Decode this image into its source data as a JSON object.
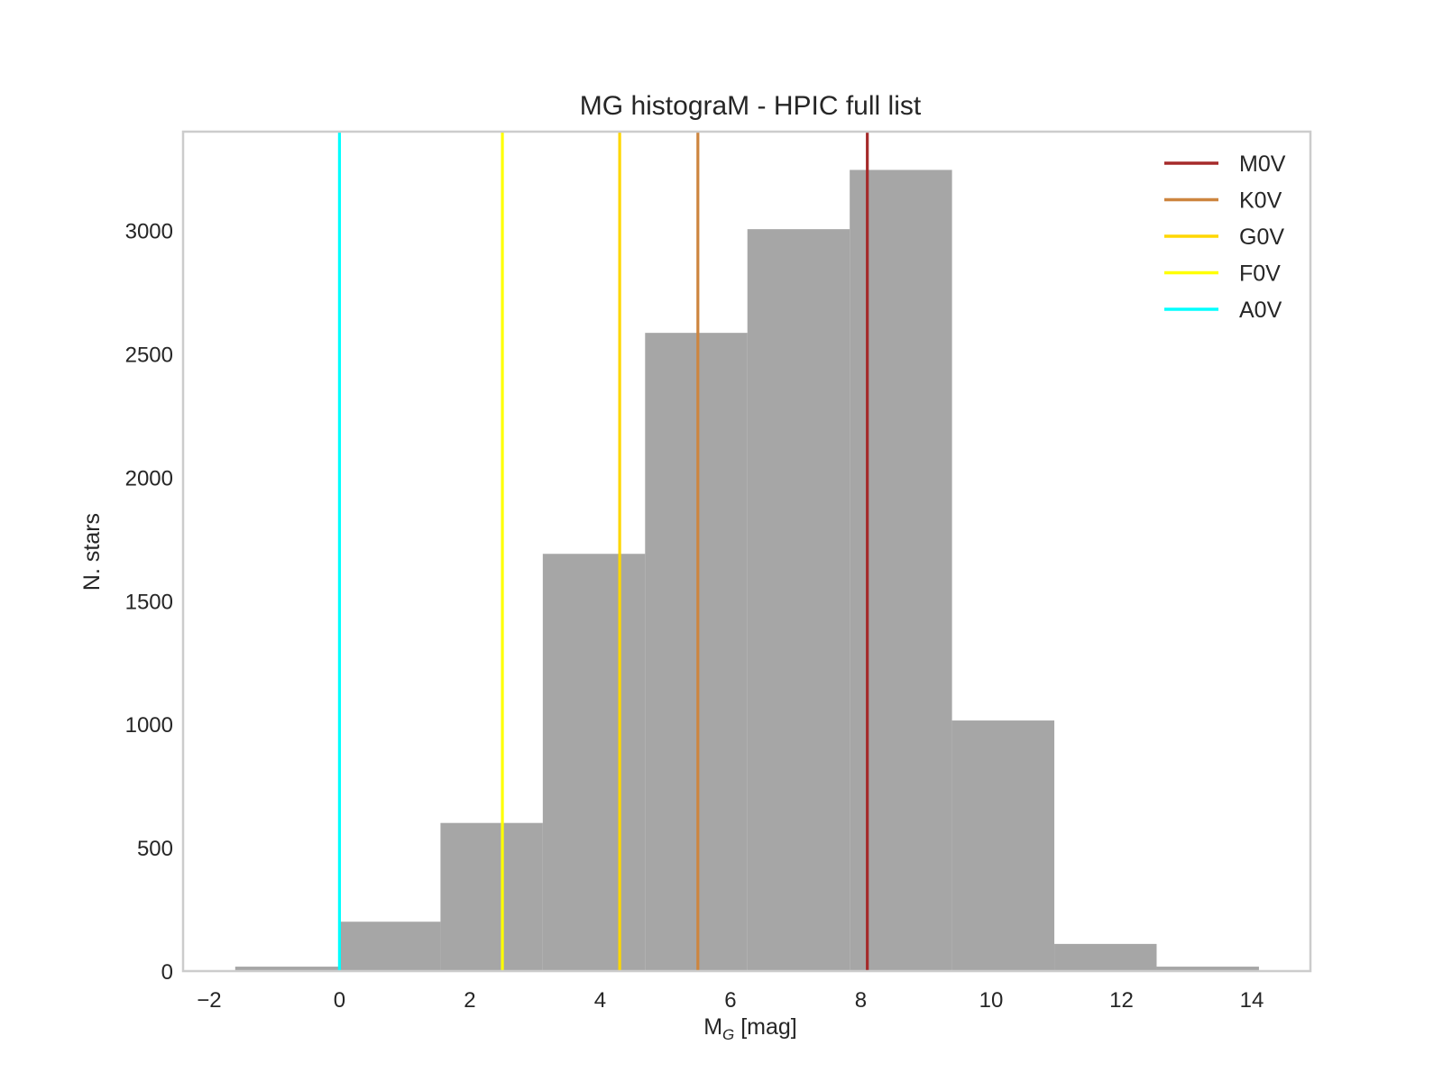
{
  "chart_data": {
    "type": "bar",
    "title": "MG histograM - HPIC full list",
    "xlabel": {
      "main": "M",
      "sub": "G",
      "unit": " [mag]"
    },
    "ylabel": "N. stars",
    "xlim": [
      -2.4,
      14.9
    ],
    "ylim": [
      0,
      3400
    ],
    "xticks": [
      -2,
      0,
      2,
      4,
      6,
      8,
      10,
      12,
      14
    ],
    "xtick_labels": [
      "−2",
      "0",
      "2",
      "4",
      "6",
      "8",
      "10",
      "12",
      "14"
    ],
    "yticks": [
      0,
      500,
      1000,
      1500,
      2000,
      2500,
      3000
    ],
    "yticks_labels": [
      "0",
      "500",
      "1000",
      "1500",
      "2000",
      "2500",
      "3000"
    ],
    "bins": [
      {
        "x0": -1.6,
        "x1": 0.0,
        "value": 18
      },
      {
        "x0": 0.0,
        "x1": 1.55,
        "value": 200
      },
      {
        "x0": 1.55,
        "x1": 3.12,
        "value": 600
      },
      {
        "x0": 3.12,
        "x1": 4.69,
        "value": 1690
      },
      {
        "x0": 4.69,
        "x1": 6.26,
        "value": 2585
      },
      {
        "x0": 6.26,
        "x1": 7.83,
        "value": 3005
      },
      {
        "x0": 7.83,
        "x1": 9.4,
        "value": 3245
      },
      {
        "x0": 9.4,
        "x1": 10.97,
        "value": 1015
      },
      {
        "x0": 10.97,
        "x1": 12.54,
        "value": 110
      },
      {
        "x0": 12.54,
        "x1": 14.11,
        "value": 18
      }
    ],
    "bar_color": "#a6a6a6",
    "reference_lines": [
      {
        "label": "M0V",
        "x": 8.1,
        "color": "#a52a2a"
      },
      {
        "label": "K0V",
        "x": 5.5,
        "color": "#cd853f"
      },
      {
        "label": "G0V",
        "x": 4.3,
        "color": "#ffd700"
      },
      {
        "label": "F0V",
        "x": 2.5,
        "color": "#ffff00"
      },
      {
        "label": "A0V",
        "x": 0.0,
        "color": "#00ffff"
      }
    ],
    "legend_position": "top-right",
    "grid": false
  }
}
